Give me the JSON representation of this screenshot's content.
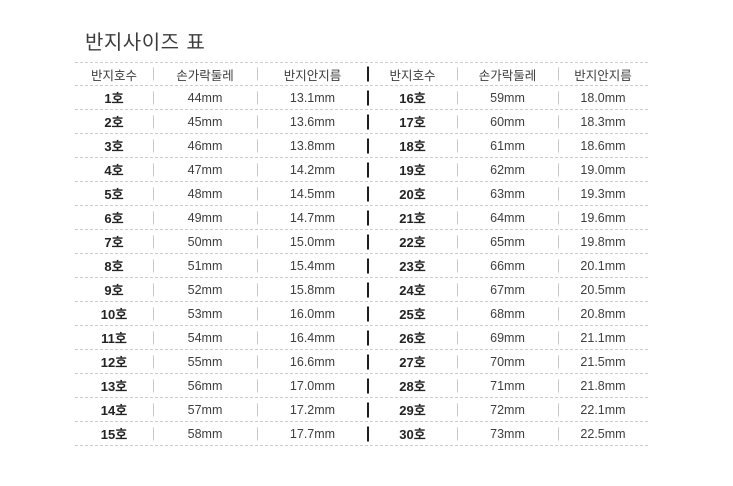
{
  "title": "반지사이즈 표",
  "columns": [
    "반지호수",
    "손가락둘레",
    "반지안지름"
  ],
  "left_rows": [
    {
      "size": "1호",
      "circumference": "44mm",
      "diameter": "13.1mm"
    },
    {
      "size": "2호",
      "circumference": "45mm",
      "diameter": "13.6mm"
    },
    {
      "size": "3호",
      "circumference": "46mm",
      "diameter": "13.8mm"
    },
    {
      "size": "4호",
      "circumference": "47mm",
      "diameter": "14.2mm"
    },
    {
      "size": "5호",
      "circumference": "48mm",
      "diameter": "14.5mm"
    },
    {
      "size": "6호",
      "circumference": "49mm",
      "diameter": "14.7mm"
    },
    {
      "size": "7호",
      "circumference": "50mm",
      "diameter": "15.0mm"
    },
    {
      "size": "8호",
      "circumference": "51mm",
      "diameter": "15.4mm"
    },
    {
      "size": "9호",
      "circumference": "52mm",
      "diameter": "15.8mm"
    },
    {
      "size": "10호",
      "circumference": "53mm",
      "diameter": "16.0mm"
    },
    {
      "size": "11호",
      "circumference": "54mm",
      "diameter": "16.4mm"
    },
    {
      "size": "12호",
      "circumference": "55mm",
      "diameter": "16.6mm"
    },
    {
      "size": "13호",
      "circumference": "56mm",
      "diameter": "17.0mm"
    },
    {
      "size": "14호",
      "circumference": "57mm",
      "diameter": "17.2mm"
    },
    {
      "size": "15호",
      "circumference": "58mm",
      "diameter": "17.7mm"
    }
  ],
  "right_rows": [
    {
      "size": "16호",
      "circumference": "59mm",
      "diameter": "18.0mm"
    },
    {
      "size": "17호",
      "circumference": "60mm",
      "diameter": "18.3mm"
    },
    {
      "size": "18호",
      "circumference": "61mm",
      "diameter": "18.6mm"
    },
    {
      "size": "19호",
      "circumference": "62mm",
      "diameter": "19.0mm"
    },
    {
      "size": "20호",
      "circumference": "63mm",
      "diameter": "19.3mm"
    },
    {
      "size": "21호",
      "circumference": "64mm",
      "diameter": "19.6mm"
    },
    {
      "size": "22호",
      "circumference": "65mm",
      "diameter": "19.8mm"
    },
    {
      "size": "23호",
      "circumference": "66mm",
      "diameter": "20.1mm"
    },
    {
      "size": "24호",
      "circumference": "67mm",
      "diameter": "20.5mm"
    },
    {
      "size": "25호",
      "circumference": "68mm",
      "diameter": "20.8mm"
    },
    {
      "size": "26호",
      "circumference": "69mm",
      "diameter": "21.1mm"
    },
    {
      "size": "27호",
      "circumference": "70mm",
      "diameter": "21.5mm"
    },
    {
      "size": "28호",
      "circumference": "71mm",
      "diameter": "21.8mm"
    },
    {
      "size": "29호",
      "circumference": "72mm",
      "diameter": "22.1mm"
    },
    {
      "size": "30호",
      "circumference": "73mm",
      "diameter": "22.5mm"
    }
  ],
  "colors": {
    "background": "#ffffff",
    "title_text": "#3d3d3d",
    "header_text": "#3c3c3c",
    "size_text": "#232323",
    "value_text": "#3e3e3e",
    "dashed_line": "#cdcdcd",
    "separator_light": "#c7c7c7",
    "separator_dark": "#1e1e1e"
  }
}
